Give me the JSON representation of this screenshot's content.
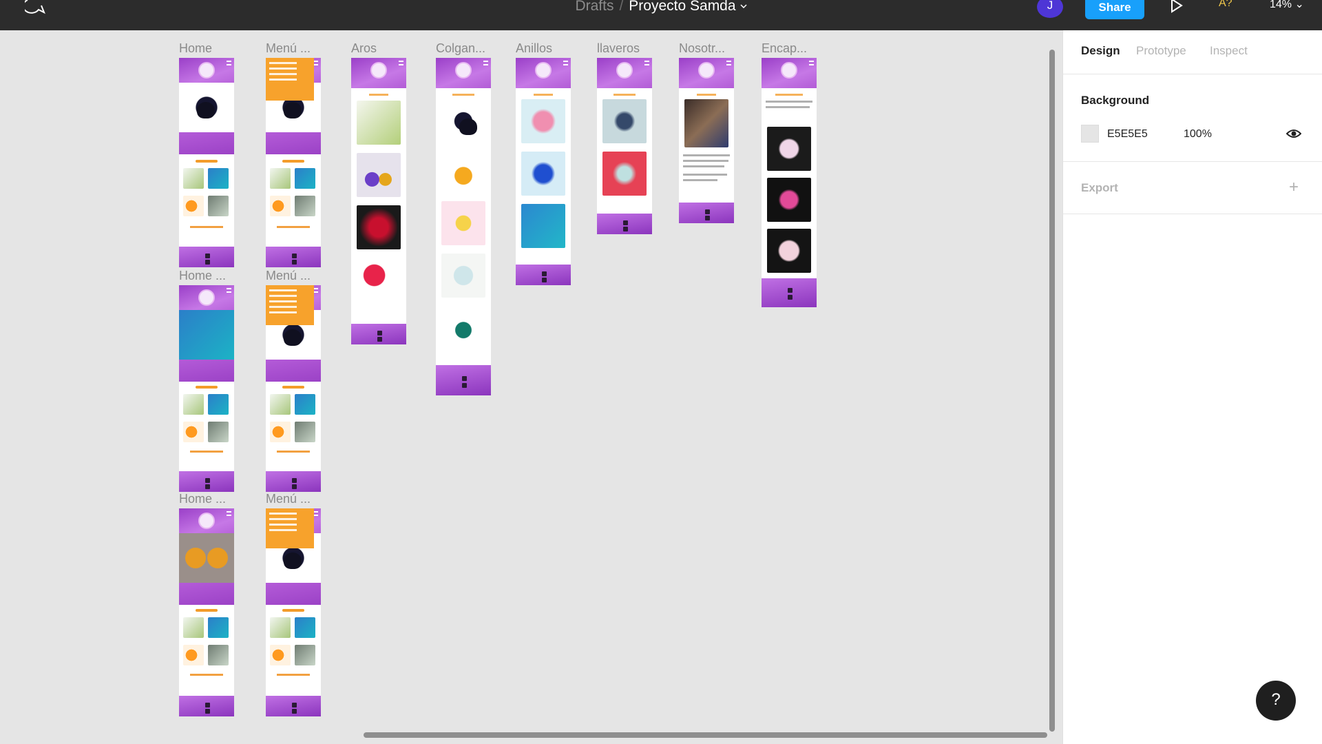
{
  "toolbar": {
    "breadcrumb": "Drafts",
    "separator": "/",
    "project": "Proyecto Samda",
    "avatar_initial": "J",
    "share_label": "Share",
    "a11y_label": "A?",
    "zoom": "14%"
  },
  "frames": {
    "col1": [
      "Home",
      "Home ...",
      "Home ..."
    ],
    "col2": [
      "Menú ...",
      "Menú ...",
      "Menú ..."
    ],
    "aros": "Aros",
    "colgantes": "Colgan...",
    "anillos": "Anillos",
    "llaveros": "llaveros",
    "nosotros": "Nosotr...",
    "encap": "Encap..."
  },
  "panel": {
    "tabs": [
      "Design",
      "Prototype",
      "Inspect"
    ],
    "background_title": "Background",
    "bg_hex": "E5E5E5",
    "bg_opacity": "100%",
    "export_title": "Export",
    "export_add": "+"
  },
  "help_label": "?",
  "colors": {
    "accent": "#18a0fb",
    "toolbar": "#2c2c2c",
    "canvas": "#e5e5e5",
    "avatar": "#4e36d6"
  }
}
